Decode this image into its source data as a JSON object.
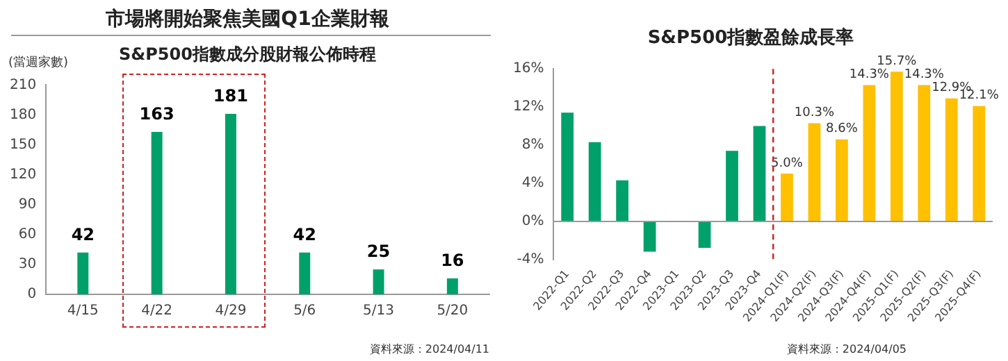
{
  "chart_data": [
    {
      "type": "bar",
      "title": "市場將開始聚焦美國Q1企業財報",
      "subtitle": "S&P500指數成分股財報公佈時程",
      "ylabel": "(當週家數)",
      "categories": [
        "4/15",
        "4/22",
        "4/29",
        "5/6",
        "5/13",
        "5/20"
      ],
      "values": [
        42,
        163,
        181,
        42,
        25,
        16
      ],
      "color": "#00a06a",
      "ylim": [
        0,
        210
      ],
      "yticks": [
        0,
        30,
        60,
        90,
        120,
        150,
        180,
        210
      ],
      "data_labels": true,
      "annotations": [
        "資料來源：2024/04/11"
      ]
    },
    {
      "type": "bar",
      "title": "S&P500指數盈餘成長率",
      "categories": [
        "2022-Q1",
        "2022-Q2",
        "2022-Q3",
        "2022-Q4",
        "2023-Q1",
        "2023-Q2",
        "2023-Q3",
        "2023-Q4",
        "2024-Q1(F)",
        "2024-Q2(F)",
        "2024-Q3(F)",
        "2024-Q4(F)",
        "2025-Q1(F)",
        "2025-Q2(F)",
        "2025-Q3(F)",
        "2025-Q4(F)"
      ],
      "values": [
        11.4,
        8.3,
        4.3,
        -3.2,
        0,
        -2.8,
        7.4,
        10.0,
        5.0,
        10.3,
        8.6,
        14.3,
        15.7,
        14.3,
        12.9,
        12.1
      ],
      "colors": [
        "#00a06a",
        "#00a06a",
        "#00a06a",
        "#00a06a",
        "#00a06a",
        "#00a06a",
        "#00a06a",
        "#00a06a",
        "#ffc000",
        "#ffc000",
        "#ffc000",
        "#ffc000",
        "#ffc000",
        "#ffc000",
        "#ffc000",
        "#ffc000"
      ],
      "value_labels": [
        null,
        null,
        null,
        null,
        null,
        null,
        null,
        null,
        "5.0%",
        "10.3%",
        "8.6%",
        "14.3%",
        "15.7%",
        "14.3%",
        "12.9%",
        "12.1%"
      ],
      "ylim": [
        -4,
        16
      ],
      "yticks": [
        {
          "value": -4,
          "label": "-4%"
        },
        {
          "value": 0,
          "label": "0%"
        },
        {
          "value": 4,
          "label": "4%"
        },
        {
          "value": 8,
          "label": "8%"
        },
        {
          "value": 12,
          "label": "12%"
        },
        {
          "value": 16,
          "label": "16%"
        }
      ],
      "ref_lines": [
        {
          "axis": "x",
          "value": "2024-Q1(F)",
          "color": "#d02020",
          "line_style": "dashed"
        }
      ],
      "annotations": [
        "資料來源：2024/04/05"
      ]
    }
  ]
}
